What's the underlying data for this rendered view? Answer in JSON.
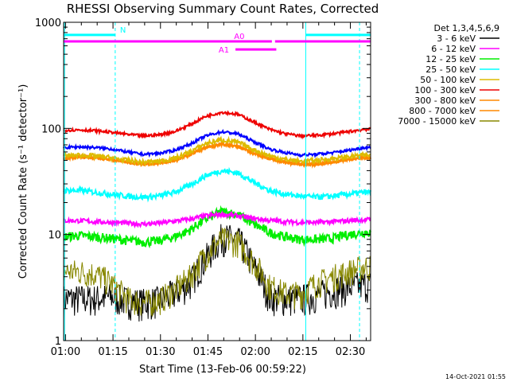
{
  "chart_data": {
    "type": "line",
    "title": "RHESSI Observing Summary Count Rates, Corrected",
    "xlabel": "Start Time (13-Feb-06 00:59:22)",
    "ylabel": "Corrected Count Rate (s⁻¹ detector⁻¹)",
    "yscale": "log",
    "ylim": [
      1,
      1000
    ],
    "xlim_minutes": [
      0,
      97
    ],
    "x_ticks": [
      {
        "label": "01:00",
        "min": 0.6
      },
      {
        "label": "01:15",
        "min": 15.6
      },
      {
        "label": "01:30",
        "min": 30.6
      },
      {
        "label": "01:45",
        "min": 45.6
      },
      {
        "label": "02:00",
        "min": 60.6
      },
      {
        "label": "02:15",
        "min": 75.6
      },
      {
        "label": "02:30",
        "min": 90.6
      }
    ],
    "y_ticks": [
      {
        "label": "1",
        "value": 1
      },
      {
        "label": "10",
        "value": 10
      },
      {
        "label": "100",
        "value": 100
      },
      {
        "label": "1000",
        "value": 1000
      }
    ],
    "legend_title": "Det 1,3,4,5,6,9",
    "legend_placement": "right",
    "x_minutes": [
      0,
      5,
      10,
      15,
      20,
      25,
      30,
      35,
      40,
      45,
      50,
      55,
      60,
      65,
      70,
      75,
      80,
      85,
      90,
      95
    ],
    "series": [
      {
        "name": "3 - 6 keV",
        "color": "#000000",
        "noise": 0.35,
        "values": [
          2.5,
          2.5,
          2.5,
          2.6,
          2.4,
          2.3,
          2.4,
          2.8,
          3.5,
          6.0,
          9.5,
          9.0,
          5.0,
          2.6,
          2.5,
          2.5,
          2.7,
          3.0,
          3.2,
          3.4
        ]
      },
      {
        "name": "6 - 12 keV",
        "color": "#ff00ff",
        "noise": 0.05,
        "values": [
          13.5,
          13.5,
          13.2,
          13.0,
          12.8,
          12.5,
          12.8,
          13.3,
          14.0,
          15.0,
          15.5,
          15.0,
          14.2,
          13.6,
          13.2,
          13.0,
          13.0,
          13.2,
          13.5,
          13.8
        ]
      },
      {
        "name": "12 - 25 keV",
        "color": "#00ee00",
        "noise": 0.1,
        "values": [
          9.5,
          9.8,
          9.5,
          9.2,
          8.8,
          8.5,
          8.7,
          9.5,
          11.0,
          14.0,
          16.5,
          15.5,
          12.5,
          10.5,
          9.5,
          9.0,
          9.0,
          9.2,
          10.0,
          10.5
        ]
      },
      {
        "name": "25 - 50 keV",
        "color": "#00ffff",
        "noise": 0.06,
        "values": [
          26,
          26,
          25,
          24,
          23,
          22.5,
          23,
          25,
          29,
          36,
          40,
          38,
          31,
          26,
          24,
          23,
          22.5,
          23,
          24,
          25
        ]
      },
      {
        "name": "50 - 100 keV",
        "color": "#ddbb00",
        "noise": 0.05,
        "values": [
          55,
          56,
          55,
          53,
          50,
          48,
          49,
          52,
          60,
          72,
          78,
          74,
          63,
          55,
          51,
          49,
          50,
          52,
          54,
          56
        ]
      },
      {
        "name": "100 - 300 keV",
        "color": "#ee0000",
        "noise": 0.03,
        "values": [
          96,
          97,
          95,
          92,
          88,
          85,
          87,
          93,
          108,
          130,
          142,
          136,
          115,
          98,
          89,
          85,
          86,
          89,
          93,
          98
        ]
      },
      {
        "name": "300 - 800 keV",
        "color": "#ff8800",
        "noise": 0.03,
        "values": [
          52,
          54,
          53,
          51,
          48,
          46,
          47,
          50,
          57,
          66,
          71,
          68,
          58,
          52,
          48,
          46,
          46,
          48,
          51,
          53
        ]
      },
      {
        "name": "800 - 7000 keV",
        "color": "#ff8800",
        "noise": 0.03,
        "values": [
          52,
          54,
          53,
          51,
          48,
          46,
          47,
          50,
          57,
          66,
          71,
          68,
          58,
          52,
          48,
          46,
          46,
          48,
          51,
          53
        ]
      },
      {
        "name": "7000 - 15000 keV",
        "color": "#888800",
        "noise": 0.3,
        "values": [
          4.5,
          4.5,
          4.3,
          3.5,
          2.5,
          2.3,
          2.4,
          3.0,
          4.0,
          6.5,
          9.0,
          8.5,
          5.5,
          3.3,
          2.8,
          2.8,
          3.5,
          4.0,
          4.5,
          5.0
        ]
      }
    ],
    "extra_series": [
      {
        "name": "blue_trace",
        "color": "#0000ff",
        "noise": 0.03,
        "values": [
          66,
          67,
          66,
          64,
          60,
          57,
          58,
          62,
          71,
          85,
          93,
          89,
          75,
          64,
          59,
          56,
          57,
          59,
          62,
          66
        ]
      }
    ],
    "flags": [
      {
        "label": "N",
        "color": "#00ffff",
        "y_value": 760,
        "segments": [
          [
            0,
            16.3
          ],
          [
            76.5,
            97
          ]
        ]
      },
      {
        "label": "A0",
        "color": "#ff00ff",
        "y_value": 660,
        "segments": [
          [
            0,
            65.8
          ],
          [
            66.8,
            97
          ]
        ]
      },
      {
        "label": "A1",
        "color": "#ff00ff",
        "y_value": 555,
        "segments": [
          [
            54.3,
            67.2
          ]
        ]
      }
    ],
    "vertical_lines": [
      {
        "minute": 0.3,
        "color": "#00ffff",
        "style": "solid"
      },
      {
        "minute": 16.3,
        "color": "#00ffff",
        "style": "dashed"
      },
      {
        "minute": 76.5,
        "color": "#00ffff",
        "style": "solid"
      },
      {
        "minute": 93.5,
        "color": "#00ffff",
        "style": "dashed"
      }
    ],
    "footer_date": "14-Oct-2021 01:55"
  }
}
